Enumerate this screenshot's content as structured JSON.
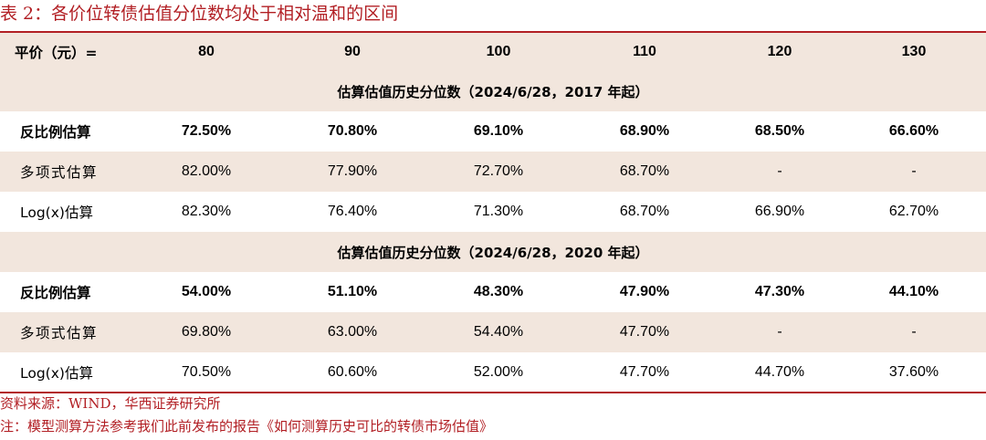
{
  "title": "表 2：各价位转债估值分位数均处于相对温和的区间",
  "header": {
    "label": "平价（元）=",
    "columns": [
      "80",
      "90",
      "100",
      "110",
      "120",
      "130"
    ]
  },
  "sections": [
    {
      "heading": "估算估值历史分位数（2024/6/28，2017 年起）",
      "rows": [
        {
          "label": "反比例估算",
          "values": [
            "72.50%",
            "70.80%",
            "69.10%",
            "68.90%",
            "68.50%",
            "66.60%"
          ]
        },
        {
          "label": "多项式估算",
          "values": [
            "82.00%",
            "77.90%",
            "72.70%",
            "68.70%",
            "-",
            "-"
          ]
        },
        {
          "label": "Log(x)估算",
          "values": [
            "82.30%",
            "76.40%",
            "71.30%",
            "68.70%",
            "66.90%",
            "62.70%"
          ]
        }
      ]
    },
    {
      "heading": "估算估值历史分位数（2024/6/28，2020 年起）",
      "rows": [
        {
          "label": "反比例估算",
          "values": [
            "54.00%",
            "51.10%",
            "48.30%",
            "47.90%",
            "47.30%",
            "44.10%"
          ]
        },
        {
          "label": "多项式估算",
          "values": [
            "69.80%",
            "63.00%",
            "54.40%",
            "47.70%",
            "-",
            "-"
          ]
        },
        {
          "label": "Log(x)估算",
          "values": [
            "70.50%",
            "60.60%",
            "52.00%",
            "47.70%",
            "44.70%",
            "37.60%"
          ]
        }
      ]
    }
  ],
  "source": "资料来源：WIND，华西证券研究所",
  "note": "注：模型测算方法参考我们此前发布的报告《如何测算历史可比的转债市场估值》",
  "colors": {
    "accent": "#b21f24",
    "band": "#f2e6dd"
  }
}
